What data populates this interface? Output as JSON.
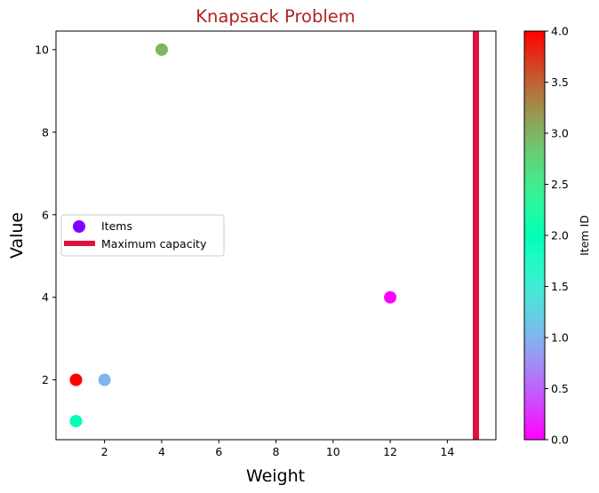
{
  "chart_data": {
    "type": "scatter",
    "title": "Knapsack Problem",
    "title_color": "#b22222",
    "xlabel": "Weight",
    "ylabel": "Value",
    "xlim": [
      0.3,
      15.7
    ],
    "ylim": [
      0.55,
      10.45
    ],
    "xticks": [
      2,
      4,
      6,
      8,
      10,
      12,
      14
    ],
    "yticks": [
      2,
      4,
      6,
      8,
      10
    ],
    "grid": false,
    "legend_position": "center-left",
    "series": [
      {
        "name": "Items",
        "marker": "circle",
        "colormap": "rainbow",
        "points": [
          {
            "id": 0,
            "x": 12,
            "y": 4
          },
          {
            "id": 1,
            "x": 2,
            "y": 2
          },
          {
            "id": 2,
            "x": 1,
            "y": 1
          },
          {
            "id": 3,
            "x": 4,
            "y": 10
          },
          {
            "id": 4,
            "x": 1,
            "y": 2
          }
        ]
      },
      {
        "name": "Maximum capacity",
        "type": "vline",
        "x": 15,
        "color": "#dc143c"
      }
    ],
    "colorbar": {
      "label": "Item ID",
      "colormap": "rainbow",
      "range": [
        0,
        4
      ],
      "ticks": [
        "0.0",
        "0.5",
        "1.0",
        "1.5",
        "2.0",
        "2.5",
        "3.0",
        "3.5",
        "4.0"
      ]
    }
  }
}
